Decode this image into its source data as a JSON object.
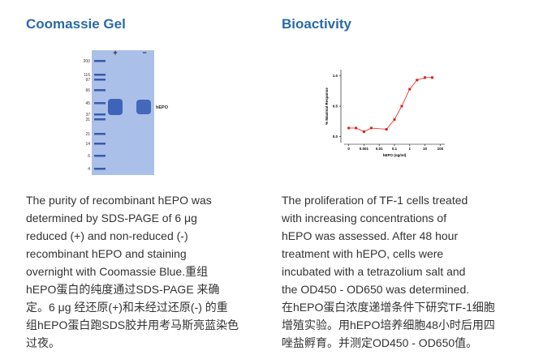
{
  "left": {
    "title": "Coomassie Gel",
    "gel": {
      "marker_labels": [
        "200",
        "116",
        "97",
        "66",
        "45",
        "37",
        "31",
        "21",
        "14",
        "6",
        "4"
      ],
      "lane_labels": [
        "+",
        "−"
      ],
      "band_label": "hEPO"
    },
    "lines": [
      "The purity of recombinant hEPO was",
      "determined by SDS-PAGE of 6 μg",
      "reduced (+) and non-reduced (-)",
      "recombinant hEPO and staining",
      "overnight with Coomassie Blue.重组",
      "hEPO蛋白的纯度通过SDS-PAGE 来确",
      "定。6 μg 经还原(+)和未经过还原(-) 的重",
      "组hEPO蛋白跑SDS胶并用考马斯亮蓝染色",
      "过夜。"
    ]
  },
  "right": {
    "title": "Bioactivity",
    "chart_data": {
      "type": "scatter",
      "y_label": "% Maximal Response",
      "x_label": "hEPO (ng/ml)",
      "log_x": true,
      "color": "#e02020",
      "x": [
        0.0001,
        0.0003,
        0.001,
        0.003,
        0.03,
        0.1,
        0.3,
        1,
        3,
        10,
        30
      ],
      "values": [
        0.14,
        0.14,
        0.08,
        0.14,
        0.12,
        0.28,
        0.5,
        0.78,
        0.93,
        0.97,
        0.97
      ],
      "xlim": [
        5e-05,
        200
      ],
      "xticks": [
        {
          "value": 0.0001,
          "label": "0"
        },
        0.001,
        0.01,
        0.1,
        1,
        10,
        100
      ],
      "ylim": [
        -0.1,
        1.1
      ],
      "yticks": [
        {
          "value": 0,
          "label": "0.0"
        },
        {
          "value": 0.5,
          "label": "0.5"
        },
        {
          "value": 1,
          "label": "1.0"
        }
      ]
    },
    "lines": [
      "The proliferation of TF-1 cells treated",
      "with increasing concentrations of",
      "hEPO was assessed. After 48 hour",
      "treatment with hEPO, cells were",
      "incubated with a tetrazolium salt and",
      "the OD450 - OD650 was determined.",
      "在hEPO蛋白浓度递增条件下研究TF-1细胞",
      "增殖实验。用hEPO培养细胞48小时后用四",
      "唑盐孵育。并测定OD450 - OD650值。"
    ]
  }
}
